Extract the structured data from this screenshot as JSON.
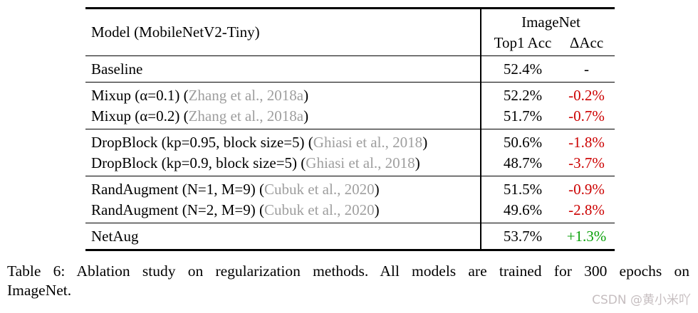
{
  "colors": {
    "text": "#000000",
    "negative": "#cc0000",
    "positive": "#09a009",
    "citation": "#9e9e9e",
    "watermark": "#c6bec0"
  },
  "table": {
    "header": {
      "model_col": "Model (MobileNetV2-Tiny)",
      "group_col": "ImageNet",
      "sub_col_1": "Top1 Acc",
      "sub_col_2": "ΔAcc"
    },
    "groups": [
      {
        "rows": [
          {
            "prefix": "Baseline",
            "cite": "",
            "suffix": "",
            "top1": "52.4%",
            "delta": "-"
          }
        ]
      },
      {
        "rows": [
          {
            "prefix": "Mixup (α=0.1) (",
            "cite": "Zhang et al., 2018a",
            "suffix": ")",
            "top1": "52.2%",
            "delta": "-0.2%"
          },
          {
            "prefix": "Mixup (α=0.2) (",
            "cite": "Zhang et al., 2018a",
            "suffix": ")",
            "top1": "51.7%",
            "delta": "-0.7%"
          }
        ]
      },
      {
        "rows": [
          {
            "prefix": "DropBlock (kp=0.95, block size=5) (",
            "cite": "Ghiasi et al., 2018",
            "suffix": ")",
            "top1": "50.6%",
            "delta": "-1.8%"
          },
          {
            "prefix": "DropBlock (kp=0.9, block size=5) (",
            "cite": "Ghiasi et al., 2018",
            "suffix": ")",
            "top1": "48.7%",
            "delta": "-3.7%"
          }
        ]
      },
      {
        "rows": [
          {
            "prefix": "RandAugment (N=1, M=9) (",
            "cite": "Cubuk et al., 2020",
            "suffix": ")",
            "top1": "51.5%",
            "delta": "-0.9%"
          },
          {
            "prefix": "RandAugment (N=2, M=9) (",
            "cite": "Cubuk et al., 2020",
            "suffix": ")",
            "top1": "49.6%",
            "delta": "-2.8%"
          }
        ]
      },
      {
        "rows": [
          {
            "prefix": "NetAug",
            "cite": "",
            "suffix": "",
            "top1": "53.7%",
            "delta": "+1.3%"
          }
        ]
      }
    ]
  },
  "caption": {
    "line1": "Table 6:  Ablation study on regularization methods.  All models are trained for 300 epochs on",
    "line2": "ImageNet."
  },
  "watermark": "CSDN @黄小米吖"
}
